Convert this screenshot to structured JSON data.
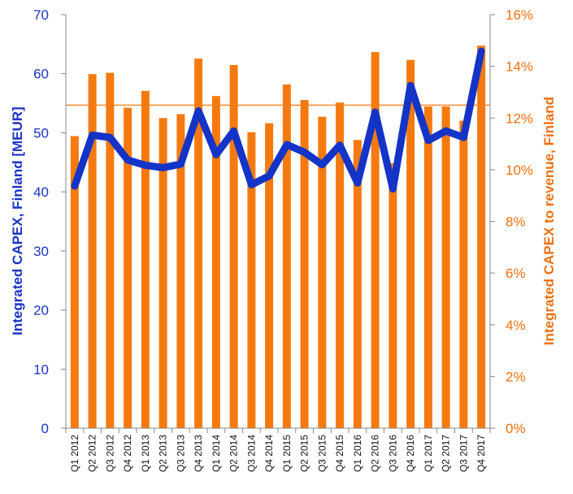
{
  "chart_data": {
    "type": "bar+line",
    "categories": [
      "Q1 2012",
      "Q2 2012",
      "Q3 2012",
      "Q4 2012",
      "Q1 2013",
      "Q2 2013",
      "Q3 2013",
      "Q4 2013",
      "Q1 2014",
      "Q2 2014",
      "Q3 2014",
      "Q4 2014",
      "Q1 2015",
      "Q2 2015",
      "Q3 2015",
      "Q4 2015",
      "Q1 2016",
      "Q2 2016",
      "Q3 2016",
      "Q4 2016",
      "Q1 2017",
      "Q2 2017",
      "Q3 2017",
      "Q4 2017"
    ],
    "series": [
      {
        "type": "bar",
        "axis": "right",
        "color": "#f47a10",
        "values": [
          11.3,
          13.7,
          13.75,
          12.4,
          13.05,
          12.0,
          12.15,
          14.3,
          12.85,
          14.05,
          11.45,
          11.8,
          13.3,
          12.7,
          12.05,
          12.6,
          11.15,
          14.55,
          10.25,
          14.25,
          12.45,
          12.45,
          11.9,
          14.8
        ]
      },
      {
        "type": "line",
        "axis": "left",
        "color": "#1434c8",
        "values": [
          41,
          49.6,
          49.2,
          45.4,
          44.5,
          44.1,
          44.7,
          53.7,
          46.3,
          50.3,
          41.2,
          42.7,
          48,
          46.7,
          44.6,
          47.9,
          41.5,
          53.5,
          40.5,
          58,
          48.7,
          50.3,
          49.2,
          63.8
        ]
      }
    ],
    "reference_line": {
      "axis": "right",
      "value": 12.5,
      "color": "#f47a10"
    },
    "left_axis": {
      "label": "Integrated CAPEX, Finland [MEUR]",
      "ylim": [
        0,
        70
      ],
      "ticks": [
        "0",
        "10",
        "20",
        "30",
        "40",
        "50",
        "60",
        "70"
      ]
    },
    "right_axis": {
      "label": "Integrated CAPEX to revenue, Finland",
      "ylim": [
        0,
        16
      ],
      "ticks": [
        "0%",
        "2%",
        "4%",
        "6%",
        "8%",
        "10%",
        "12%",
        "14%",
        "16%"
      ]
    },
    "grid": false,
    "legend": "none"
  }
}
